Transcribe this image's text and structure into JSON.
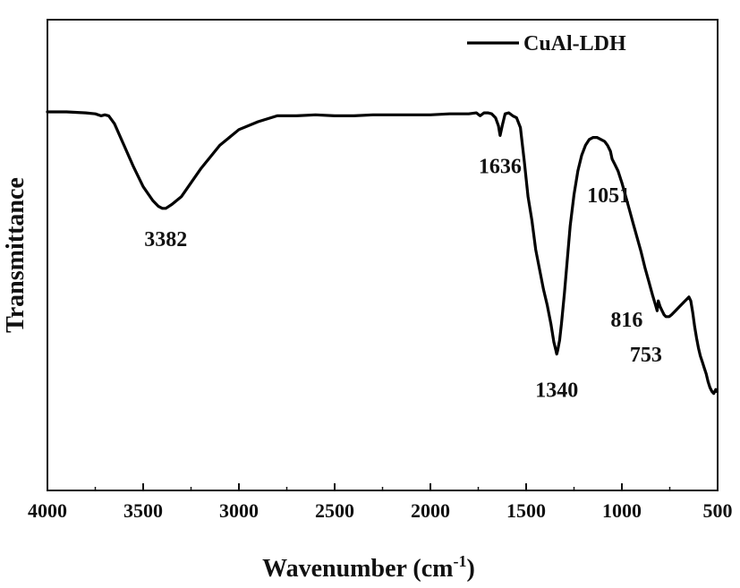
{
  "chart_data": {
    "type": "line",
    "xlabel_main": "Wavenumber (cm",
    "xlabel_sup": "-1",
    "xlabel_end": ")",
    "ylabel": "Transmittance",
    "xlim": [
      4000,
      500
    ],
    "x_reversed": true,
    "xticks": [
      "4000",
      "3500",
      "3000",
      "2500",
      "2000",
      "1500",
      "1000",
      "500"
    ],
    "yticks_labels": false,
    "legend": {
      "position": "top-right"
    },
    "series": [
      {
        "name": "CuAl-LDH",
        "color": "#000000",
        "x": [
          4000,
          3900,
          3800,
          3750,
          3720,
          3700,
          3680,
          3650,
          3600,
          3550,
          3500,
          3450,
          3420,
          3400,
          3382,
          3350,
          3300,
          3250,
          3200,
          3100,
          3000,
          2900,
          2800,
          2700,
          2600,
          2500,
          2400,
          2300,
          2200,
          2100,
          2000,
          1900,
          1800,
          1760,
          1740,
          1720,
          1700,
          1680,
          1660,
          1645,
          1636,
          1625,
          1610,
          1590,
          1570,
          1550,
          1530,
          1510,
          1490,
          1470,
          1450,
          1430,
          1410,
          1390,
          1370,
          1355,
          1345,
          1340,
          1335,
          1325,
          1315,
          1300,
          1285,
          1270,
          1250,
          1230,
          1210,
          1190,
          1170,
          1150,
          1130,
          1110,
          1090,
          1075,
          1060,
          1051,
          1040,
          1020,
          1000,
          980,
          960,
          940,
          920,
          900,
          880,
          860,
          840,
          825,
          816,
          810,
          800,
          790,
          780,
          770,
          760,
          753,
          740,
          720,
          700,
          690,
          680,
          670,
          660,
          650,
          640,
          630,
          620,
          610,
          600,
          590,
          580,
          570,
          560,
          550,
          540,
          530,
          520,
          510,
          505
        ],
        "y": [
          0.0,
          0.0,
          0.005,
          0.01,
          0.02,
          0.015,
          0.02,
          0.06,
          0.17,
          0.28,
          0.38,
          0.45,
          0.48,
          0.49,
          0.49,
          0.47,
          0.43,
          0.36,
          0.29,
          0.17,
          0.09,
          0.05,
          0.02,
          0.02,
          0.015,
          0.02,
          0.02,
          0.015,
          0.015,
          0.015,
          0.015,
          0.01,
          0.01,
          0.005,
          0.02,
          0.005,
          0.005,
          0.01,
          0.03,
          0.07,
          0.12,
          0.07,
          0.01,
          0.005,
          0.02,
          0.03,
          0.08,
          0.25,
          0.43,
          0.55,
          0.7,
          0.8,
          0.9,
          0.98,
          1.08,
          1.17,
          1.21,
          1.23,
          1.21,
          1.16,
          1.07,
          0.92,
          0.75,
          0.58,
          0.42,
          0.3,
          0.22,
          0.17,
          0.14,
          0.13,
          0.13,
          0.14,
          0.15,
          0.17,
          0.2,
          0.24,
          0.26,
          0.3,
          0.36,
          0.43,
          0.5,
          0.57,
          0.64,
          0.71,
          0.79,
          0.86,
          0.93,
          0.98,
          1.01,
          0.96,
          0.99,
          1.01,
          1.03,
          1.04,
          1.04,
          1.04,
          1.03,
          1.01,
          0.99,
          0.98,
          0.97,
          0.96,
          0.95,
          0.94,
          0.96,
          1.02,
          1.09,
          1.15,
          1.2,
          1.24,
          1.27,
          1.3,
          1.33,
          1.37,
          1.4,
          1.42,
          1.43,
          1.41,
          1.42
        ]
      }
    ],
    "annotations": [
      {
        "text": "3382",
        "x": 3382
      },
      {
        "text": "1636",
        "x": 1636
      },
      {
        "text": "1340",
        "x": 1340
      },
      {
        "text": "1051",
        "x": 1051
      },
      {
        "text": "816",
        "x": 816
      },
      {
        "text": "753",
        "x": 753
      }
    ]
  }
}
